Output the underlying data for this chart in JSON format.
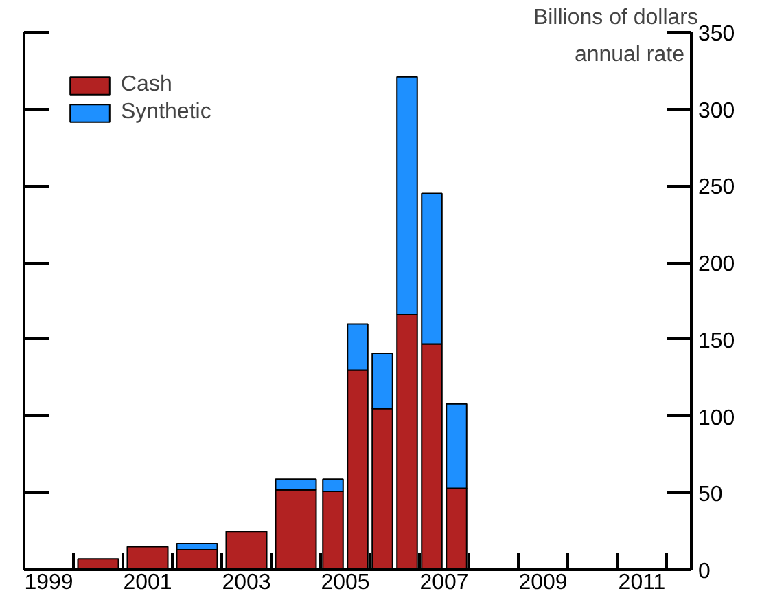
{
  "chart_data": {
    "type": "bar",
    "stacked": true,
    "x": [
      2000.5,
      2001.5,
      2002.5,
      2003.5,
      2004.5,
      2005.25,
      2005.75,
      2006.25,
      2006.75,
      2007.25,
      2007.75
    ],
    "series": [
      {
        "name": "Cash",
        "color": "#b22222",
        "values": [
          7,
          15,
          13,
          25,
          52,
          51,
          130,
          105,
          166,
          147,
          53
        ]
      },
      {
        "name": "Synthetic",
        "color": "#1e90ff",
        "values": [
          null,
          null,
          4,
          null,
          7,
          8,
          30,
          36,
          155,
          98,
          55
        ]
      }
    ],
    "ylabel": "Billions of dollars",
    "annotations": [
      "annual rate"
    ],
    "xlim": [
      1999,
      2012.5
    ],
    "xticks": [
      {
        "value": 1999.5,
        "label": "1999"
      },
      {
        "value": 2000,
        "label": null
      },
      {
        "value": 2001,
        "label": null
      },
      {
        "value": 2001.5,
        "label": "2001"
      },
      {
        "value": 2002,
        "label": null
      },
      {
        "value": 2003,
        "label": null
      },
      {
        "value": 2003.5,
        "label": "2003"
      },
      {
        "value": 2004,
        "label": null
      },
      {
        "value": 2005,
        "label": null
      },
      {
        "value": 2005.5,
        "label": "2005"
      },
      {
        "value": 2006,
        "label": null
      },
      {
        "value": 2007,
        "label": null
      },
      {
        "value": 2007.5,
        "label": "2007"
      },
      {
        "value": 2008,
        "label": null
      },
      {
        "value": 2009,
        "label": null
      },
      {
        "value": 2009.5,
        "label": "2009"
      },
      {
        "value": 2010,
        "label": null
      },
      {
        "value": 2011,
        "label": null
      },
      {
        "value": 2011.5,
        "label": "2011"
      },
      {
        "value": 2012,
        "label": null
      }
    ],
    "ylim": [
      0,
      350
    ],
    "yticks": [
      0,
      50,
      100,
      150,
      200,
      250,
      300,
      350
    ],
    "legend": "top left",
    "grid": false
  }
}
